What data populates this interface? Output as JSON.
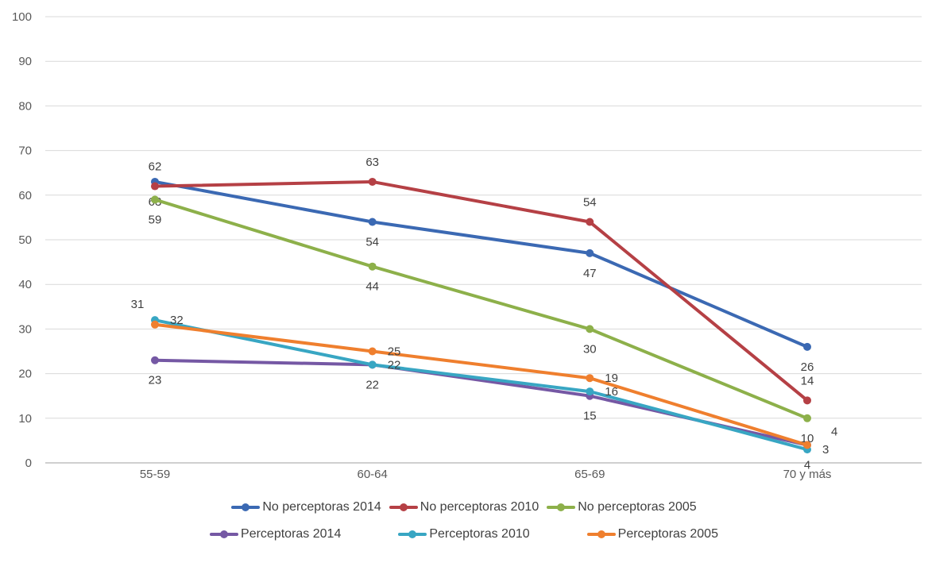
{
  "chart_data": {
    "type": "line",
    "title": "",
    "categories": [
      "55-59",
      "60-64",
      "65-69",
      "70 y más"
    ],
    "x_axis": {
      "tick_labels": [
        "55-59",
        "60-64",
        "65-69",
        "70 y más"
      ]
    },
    "y_axis": {
      "min": 0,
      "max": 100,
      "step": 10,
      "tick_labels": [
        "0",
        "10",
        "20",
        "30",
        "40",
        "50",
        "60",
        "70",
        "80",
        "90",
        "100"
      ]
    },
    "grid": true,
    "legend_position": "bottom",
    "legend_rows": [
      [
        0,
        1,
        2
      ],
      [
        3,
        4,
        5
      ]
    ],
    "series": [
      {
        "name": "No perceptoras 2014",
        "color": "#3B69B3",
        "values": [
          63,
          54,
          47,
          26
        ],
        "label_positions": [
          "below",
          "below",
          "below",
          "below"
        ]
      },
      {
        "name": "No perceptoras 2010",
        "color": "#B54045",
        "values": [
          62,
          63,
          54,
          14
        ],
        "label_positions": [
          "above",
          "above",
          "above",
          "above"
        ]
      },
      {
        "name": "No perceptoras 2005",
        "color": "#8DB04A",
        "values": [
          59,
          44,
          30,
          10
        ],
        "label_positions": [
          "below",
          "below",
          "below",
          "below"
        ]
      },
      {
        "name": "Perceptoras 2014",
        "color": "#7558A4",
        "values": [
          23,
          22,
          15,
          4
        ],
        "label_positions": [
          "below",
          "below",
          "below",
          "below"
        ]
      },
      {
        "name": "Perceptoras 2010",
        "color": "#38A6C3",
        "values": [
          32,
          22,
          16,
          3
        ],
        "label_positions": [
          "right",
          "right",
          "right",
          "right"
        ]
      },
      {
        "name": "Perceptoras 2005",
        "color": "#EF7F2E",
        "values": [
          31,
          25,
          19,
          4
        ],
        "label_positions": [
          "above-left",
          "right",
          "right",
          "right-up"
        ]
      }
    ]
  },
  "style": {
    "background": "#FFFFFF",
    "grid_color": "#D9D9D9",
    "axis_color": "#BFBFBF",
    "tick_label_color": "#595959",
    "data_label_color": "#3F3F3F",
    "legend_text_color": "#404040"
  }
}
